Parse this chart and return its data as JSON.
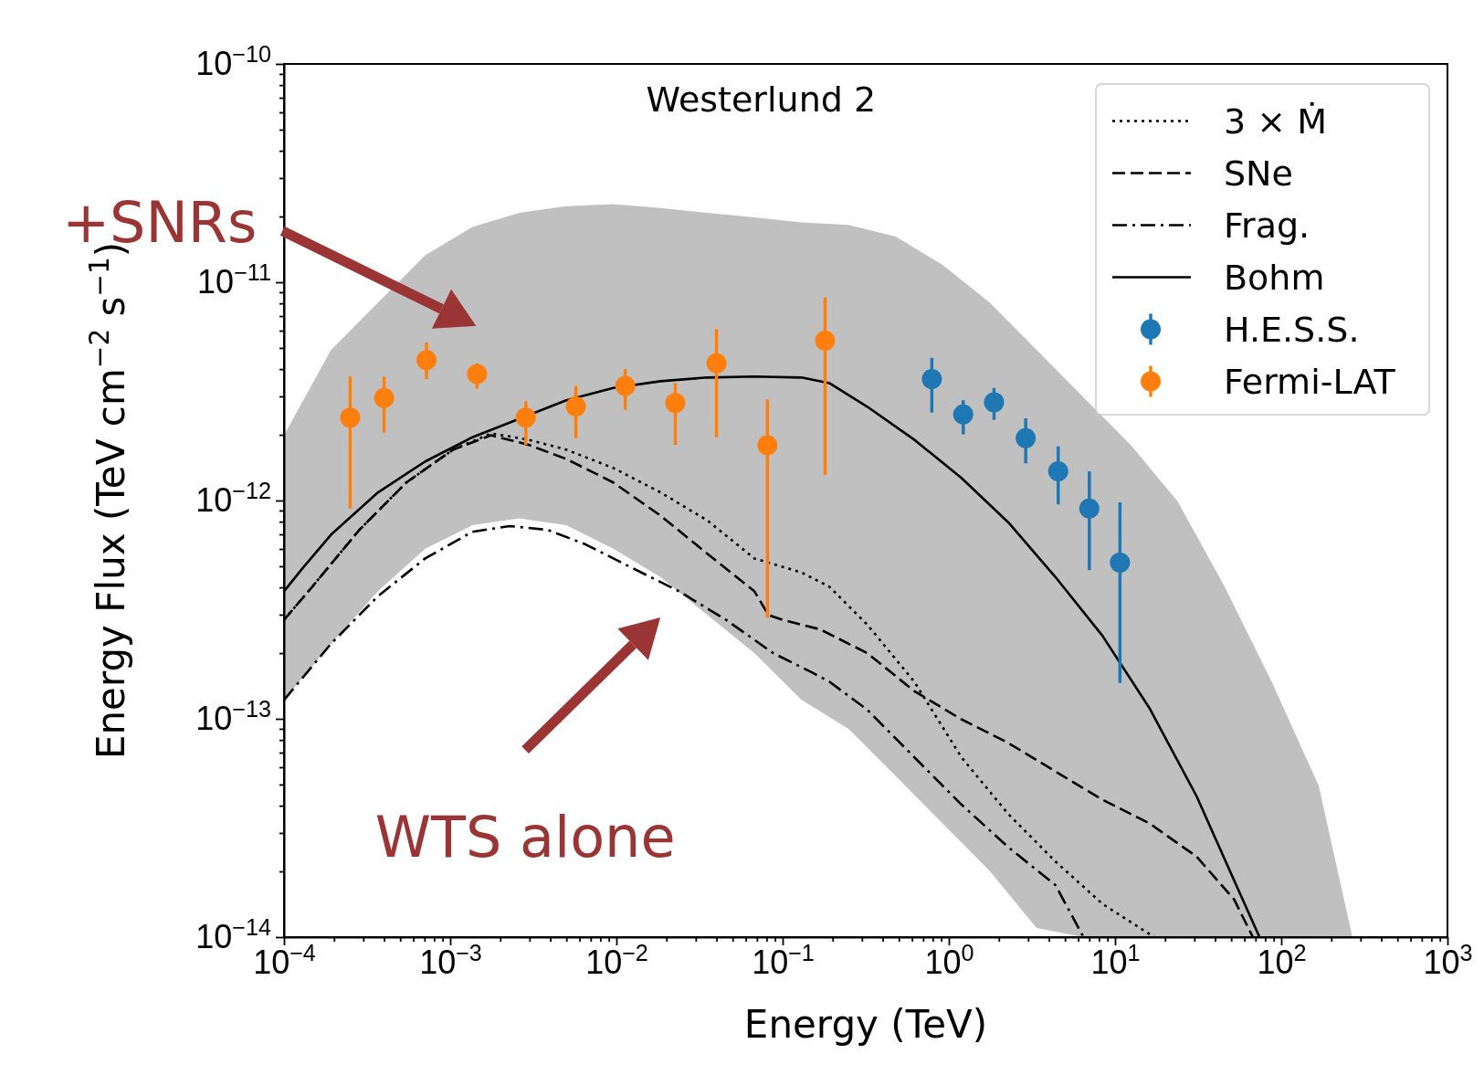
{
  "chart_data": {
    "type": "line",
    "title": "Westerlund 2",
    "xlabel": "Energy (TeV)",
    "ylabel": "Energy Flux (TeV cm$^{−2}$ s$^{−1}$)",
    "log": "xy",
    "xlim": [
      0.0001,
      1000.0
    ],
    "ylim": [
      1e-14,
      1e-10
    ],
    "legend": "top right",
    "xticks": [
      {
        "value": 0.0001,
        "label": "10$^{−4}$"
      },
      {
        "value": 0.001,
        "label": "10$^{−3}$"
      },
      {
        "value": 0.01,
        "label": "10$^{−2}$"
      },
      {
        "value": 0.1,
        "label": "10$^{−1}$"
      },
      {
        "value": 1,
        "label": "10$^{0}$"
      },
      {
        "value": 10,
        "label": "10$^{1}$"
      },
      {
        "value": 100,
        "label": "10$^{2}$"
      },
      {
        "value": 1000,
        "label": "10$^{3}$"
      },
      {
        "value": 0.0002,
        "label": null
      },
      {
        "value": 0.0003,
        "label": null
      },
      {
        "value": 0.0004,
        "label": null
      },
      {
        "value": 0.0005,
        "label": null
      },
      {
        "value": 0.0006,
        "label": null
      },
      {
        "value": 0.0007,
        "label": null
      },
      {
        "value": 0.0008,
        "label": null
      },
      {
        "value": 0.0009,
        "label": null
      },
      {
        "value": 0.002,
        "label": null
      },
      {
        "value": 0.003,
        "label": null
      },
      {
        "value": 0.004,
        "label": null
      },
      {
        "value": 0.005,
        "label": null
      },
      {
        "value": 0.006,
        "label": null
      },
      {
        "value": 0.007,
        "label": null
      },
      {
        "value": 0.008,
        "label": null
      },
      {
        "value": 0.009,
        "label": null
      },
      {
        "value": 0.02,
        "label": null
      },
      {
        "value": 0.03,
        "label": null
      },
      {
        "value": 0.04,
        "label": null
      },
      {
        "value": 0.05,
        "label": null
      },
      {
        "value": 0.06,
        "label": null
      },
      {
        "value": 0.07,
        "label": null
      },
      {
        "value": 0.08,
        "label": null
      },
      {
        "value": 0.09,
        "label": null
      },
      {
        "value": 0.2,
        "label": null
      },
      {
        "value": 0.3,
        "label": null
      },
      {
        "value": 0.4,
        "label": null
      },
      {
        "value": 0.5,
        "label": null
      },
      {
        "value": 0.6,
        "label": null
      },
      {
        "value": 0.7,
        "label": null
      },
      {
        "value": 0.8,
        "label": null
      },
      {
        "value": 0.9,
        "label": null
      },
      {
        "value": 2,
        "label": null
      },
      {
        "value": 3,
        "label": null
      },
      {
        "value": 4,
        "label": null
      },
      {
        "value": 5,
        "label": null
      },
      {
        "value": 6,
        "label": null
      },
      {
        "value": 7,
        "label": null
      },
      {
        "value": 8,
        "label": null
      },
      {
        "value": 9,
        "label": null
      },
      {
        "value": 20,
        "label": null
      },
      {
        "value": 30,
        "label": null
      },
      {
        "value": 40,
        "label": null
      },
      {
        "value": 50,
        "label": null
      },
      {
        "value": 60,
        "label": null
      },
      {
        "value": 70,
        "label": null
      },
      {
        "value": 80,
        "label": null
      },
      {
        "value": 90,
        "label": null
      },
      {
        "value": 200,
        "label": null
      },
      {
        "value": 300,
        "label": null
      },
      {
        "value": 400,
        "label": null
      },
      {
        "value": 500,
        "label": null
      },
      {
        "value": 600,
        "label": null
      },
      {
        "value": 700,
        "label": null
      },
      {
        "value": 800,
        "label": null
      },
      {
        "value": 900,
        "label": null
      }
    ],
    "yticks": [
      {
        "value": 1e-14,
        "label": "10$^{−14}$"
      },
      {
        "value": 1e-13,
        "label": "10$^{−13}$"
      },
      {
        "value": 1e-12,
        "label": "10$^{−12}$"
      },
      {
        "value": 1e-11,
        "label": "10$^{−11}$"
      },
      {
        "value": 1e-10,
        "label": "10$^{−10}$"
      },
      {
        "value": 2e-14,
        "label": null
      },
      {
        "value": 3e-14,
        "label": null
      },
      {
        "value": 4e-14,
        "label": null
      },
      {
        "value": 5e-14,
        "label": null
      },
      {
        "value": 6e-14,
        "label": null
      },
      {
        "value": 7e-14,
        "label": null
      },
      {
        "value": 8e-14,
        "label": null
      },
      {
        "value": 9e-14,
        "label": null
      },
      {
        "value": 2e-13,
        "label": null
      },
      {
        "value": 3e-13,
        "label": null
      },
      {
        "value": 4e-13,
        "label": null
      },
      {
        "value": 5e-13,
        "label": null
      },
      {
        "value": 6e-13,
        "label": null
      },
      {
        "value": 7e-13,
        "label": null
      },
      {
        "value": 8e-13,
        "label": null
      },
      {
        "value": 9e-13,
        "label": null
      },
      {
        "value": 2e-12,
        "label": null
      },
      {
        "value": 3e-12,
        "label": null
      },
      {
        "value": 4e-12,
        "label": null
      },
      {
        "value": 5e-12,
        "label": null
      },
      {
        "value": 6e-12,
        "label": null
      },
      {
        "value": 7e-12,
        "label": null
      },
      {
        "value": 8e-12,
        "label": null
      },
      {
        "value": 9e-12,
        "label": null
      },
      {
        "value": 2e-11,
        "label": null
      },
      {
        "value": 3e-11,
        "label": null
      },
      {
        "value": 4e-11,
        "label": null
      },
      {
        "value": 5e-11,
        "label": null
      },
      {
        "value": 6e-11,
        "label": null
      },
      {
        "value": 7e-11,
        "label": null
      },
      {
        "value": 8e-11,
        "label": null
      },
      {
        "value": 9e-11,
        "label": null
      }
    ],
    "annotations": [
      "+SNRs",
      "WTS alone"
    ],
    "series": [
      {
        "type": "area",
        "color": "#c0c0c0",
        "x": [
          0.0001,
          0.000192,
          0.000368,
          0.000707,
          0.00136,
          0.0026,
          0.00499,
          0.00957,
          0.0184,
          0.0352,
          0.0676,
          0.13,
          0.249,
          0.478,
          0.917,
          1.76,
          3.37,
          6.46,
          12.4,
          23.8,
          45.6,
          87.5,
          168,
          268
        ],
        "values": [
          null,
          null,
          null,
          null,
          null,
          null,
          null,
          null,
          null,
          null,
          null,
          null,
          null,
          null,
          null,
          null,
          null,
          null,
          null,
          null,
          null,
          null,
          null,
          null
        ],
        "upper": [
          1.99e-12,
          4.9e-12,
          8.07e-12,
          1.33e-11,
          1.79e-11,
          2.08e-11,
          2.23e-11,
          2.28e-11,
          2.19e-11,
          2.08e-11,
          1.98e-11,
          1.88e-11,
          1.83e-11,
          1.62e-11,
          1.2e-11,
          8.07e-12,
          4.9e-12,
          2.97e-12,
          1.8e-12,
          9.9e-13,
          4.03e-13,
          1.48e-13,
          4.94e-14,
          1e-14
        ],
        "lower": [
          1.22e-13,
          2.21e-13,
          3.84e-13,
          6.01e-13,
          7.71e-13,
          8.28e-13,
          7.71e-13,
          6.01e-13,
          4.46e-13,
          2.99e-13,
          2e-13,
          1.22e-13,
          9e-14,
          5.47e-14,
          3.32e-14,
          2.01e-14,
          1.1e-14,
          1e-14,
          1e-14,
          1e-14,
          1e-14,
          1e-14,
          1e-14,
          1e-14
        ]
      },
      {
        "name": "3 × Ṁ",
        "color": "#000000",
        "line_style": "dotted",
        "x": [
          0.0001,
          0.000148,
          0.000284,
          0.000545,
          0.00104,
          0.00176,
          0.00296,
          0.00499,
          0.00957,
          0.0184,
          0.0352,
          0.0676,
          0.13,
          0.191,
          0.323,
          0.619,
          1.19,
          2.28,
          4.38,
          8.4,
          17.2
        ],
        "values": [
          2.84e-13,
          4.03e-13,
          7.34e-13,
          1.21e-12,
          1.71e-12,
          2.03e-12,
          1.9e-12,
          1.71e-12,
          1.41e-12,
          1.09e-12,
          8.11e-13,
          5.43e-13,
          4.68e-13,
          4.03e-13,
          2.7e-13,
          1.48e-13,
          6.67e-14,
          3.66e-14,
          2.22e-14,
          1.42e-14,
          1e-14
        ]
      },
      {
        "name": "SNe",
        "color": "#000000",
        "line_style": "dashed",
        "x": [
          0.0001,
          0.000148,
          0.000284,
          0.000545,
          0.00104,
          0.00176,
          0.00296,
          0.00499,
          0.00957,
          0.0184,
          0.0352,
          0.0676,
          0.0822,
          0.0998,
          0.168,
          0.323,
          0.619,
          1.19,
          2.28,
          4.38,
          8.4,
          16.1,
          30.9,
          52,
          67.5
        ],
        "values": [
          2.84e-13,
          4.03e-13,
          7.34e-13,
          1.21e-12,
          1.71e-12,
          1.99e-12,
          1.8e-12,
          1.55e-12,
          1.21e-12,
          8.53e-13,
          5.71e-13,
          3.84e-13,
          2.99e-13,
          2.84e-13,
          2.57e-13,
          2e-13,
          1.34e-13,
          9.95e-14,
          7.75e-14,
          5.74e-14,
          4.26e-14,
          3.32e-14,
          2.34e-14,
          1.49e-14,
          1e-14
        ]
      },
      {
        "name": "Frag.",
        "color": "#000000",
        "line_style": "dashdot",
        "x": [
          0.0001,
          0.000192,
          0.000368,
          0.000707,
          0.00136,
          0.00228,
          0.00385,
          0.00648,
          0.0124,
          0.0238,
          0.0457,
          0.0877,
          0.148,
          0.191,
          0.323,
          0.619,
          1.19,
          2.28,
          4.38,
          6.46
        ],
        "values": [
          1.22e-13,
          2.21e-13,
          3.65e-13,
          5.43e-13,
          7.19e-13,
          7.64e-13,
          7.34e-13,
          6.31e-13,
          4.92e-13,
          3.84e-13,
          2.84e-13,
          2e-13,
          1.64e-13,
          1.48e-13,
          1.1e-13,
          6.67e-14,
          4.05e-14,
          2.58e-14,
          1.73e-14,
          1e-14
        ]
      },
      {
        "name": "Bohm",
        "color": "#000000",
        "line_style": "solid",
        "x": [
          0.0001,
          0.00013,
          0.000192,
          0.000368,
          0.000707,
          0.00136,
          0.00499,
          0.00957,
          0.0184,
          0.0352,
          0.0676,
          0.13,
          0.191,
          0.323,
          0.619,
          1.19,
          2.28,
          4.38,
          8.4,
          16.1,
          30.9,
          52,
          74
        ],
        "values": [
          3.84e-13,
          4.92e-13,
          6.98e-13,
          1.09e-12,
          1.51e-12,
          1.95e-12,
          2.88e-12,
          3.28e-12,
          3.52e-12,
          3.66e-12,
          3.7e-12,
          3.66e-12,
          3.45e-12,
          2.69e-12,
          1.9e-12,
          1.27e-12,
          7.94e-13,
          4.46e-13,
          2.4e-13,
          1.12e-13,
          4.43e-14,
          1.82e-14,
          1e-14
        ]
      },
      {
        "type": "scatter",
        "name": "H.E.S.S.",
        "color": "#1f77b4",
        "marker": "circle",
        "x": [
          0.79,
          1.22,
          1.87,
          2.9,
          4.55,
          7.0,
          10.7
        ],
        "values": [
          3.6e-12,
          2.48e-12,
          2.82e-12,
          1.93e-12,
          1.36e-12,
          9.2e-13,
          5.2e-13
        ],
        "errors": [
          [
            2.53e-12,
            4.5e-12
          ],
          [
            2.01e-12,
            2.88e-12
          ],
          [
            2.34e-12,
            3.28e-12
          ],
          [
            1.48e-12,
            2.38e-12
          ],
          [
            9.6e-13,
            1.77e-12
          ],
          [
            4.8e-13,
            1.36e-12
          ],
          [
            1.46e-13,
            9.8e-13
          ]
        ]
      },
      {
        "type": "scatter",
        "name": "Fermi-LAT",
        "color": "#ff7f0e",
        "marker": "circle",
        "x": [
          0.00025,
          0.0004,
          0.00072,
          0.00145,
          0.00285,
          0.0057,
          0.0113,
          0.0226,
          0.04,
          0.081,
          0.18
        ],
        "values": [
          2.4e-12,
          2.95e-12,
          4.4e-12,
          3.8e-12,
          2.4e-12,
          2.7e-12,
          3.35e-12,
          2.8e-12,
          4.25e-12,
          1.79e-12,
          5.4e-12
        ],
        "errors": [
          [
            9.2e-13,
            3.7e-12
          ],
          [
            2.05e-12,
            3.7e-12
          ],
          [
            3.6e-12,
            5.3e-12
          ],
          [
            3.25e-12,
            4.25e-12
          ],
          [
            1.8e-12,
            2.85e-12
          ],
          [
            1.93e-12,
            3.35e-12
          ],
          [
            2.6e-12,
            4e-12
          ],
          [
            1.8e-12,
            3.45e-12
          ],
          [
            1.95e-12,
            6.1e-12
          ],
          [
            2.9e-13,
            2.9e-12
          ],
          [
            1.31e-12,
            8.5e-12
          ]
        ]
      }
    ]
  }
}
